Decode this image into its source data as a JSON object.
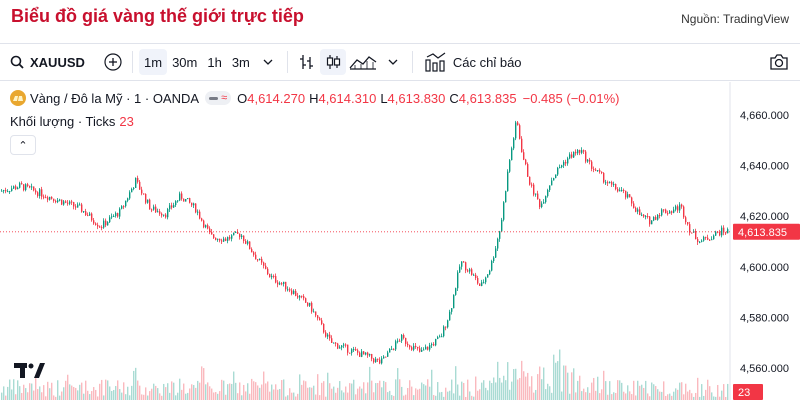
{
  "header": {
    "title": "Biểu đồ giá vàng thế giới trực tiếp",
    "source": "Nguồn: TradingView"
  },
  "toolbar": {
    "symbol": "XAUUSD",
    "intervals": [
      "1m",
      "30m",
      "1h",
      "3m"
    ],
    "active_interval": "1m",
    "indicators_label": "Các chỉ báo",
    "icons": [
      "search-icon",
      "add-symbol-icon",
      "chevron-down-icon",
      "bar-chart-icon",
      "candles-icon",
      "area-chart-icon",
      "chevron-down-icon",
      "indicators-icon",
      "camera-icon"
    ]
  },
  "legend": {
    "title": "Vàng / Đô la Mỹ · 1 · OANDA",
    "o_label": "O",
    "o": "4,614.270",
    "h_label": "H",
    "h": "4,614.310",
    "l_label": "L",
    "l": "4,613.830",
    "c_label": "C",
    "c": "4,613.835",
    "change": "−0.485 (−0.01%)",
    "wave": "≈"
  },
  "volume_legend": {
    "label": "Khối lượng · Ticks",
    "value": "23"
  },
  "chart_data": {
    "type": "candlestick",
    "symbol": "XAUUSD",
    "interval": "1m",
    "ylim": [
      4558,
      4663
    ],
    "y_ticks": [
      4560,
      4580,
      4600,
      4620,
      4640,
      4660
    ],
    "y_tick_labels": [
      "4,560.000",
      "4,580.000",
      "4,600.000",
      "4,620.000",
      "4,640.000",
      "4,660.000"
    ],
    "last_price": 4613.835,
    "last_price_label": "4,613.835",
    "last_volume": 23,
    "last_volume_label": "23",
    "price_path": [
      [
        0,
        4630
      ],
      [
        20,
        4632
      ],
      [
        40,
        4629
      ],
      [
        60,
        4626
      ],
      [
        80,
        4623
      ],
      [
        100,
        4616
      ],
      [
        120,
        4622
      ],
      [
        135,
        4634
      ],
      [
        150,
        4623
      ],
      [
        165,
        4621
      ],
      [
        180,
        4628
      ],
      [
        195,
        4623
      ],
      [
        210,
        4612
      ],
      [
        225,
        4611
      ],
      [
        240,
        4613
      ],
      [
        255,
        4604
      ],
      [
        270,
        4596
      ],
      [
        290,
        4591
      ],
      [
        310,
        4584
      ],
      [
        330,
        4570
      ],
      [
        350,
        4567
      ],
      [
        370,
        4564
      ],
      [
        380,
        4562
      ],
      [
        390,
        4567
      ],
      [
        400,
        4572
      ],
      [
        420,
        4566
      ],
      [
        440,
        4572
      ],
      [
        450,
        4583
      ],
      [
        460,
        4602
      ],
      [
        470,
        4598
      ],
      [
        480,
        4592
      ],
      [
        490,
        4600
      ],
      [
        500,
        4616
      ],
      [
        508,
        4640
      ],
      [
        516,
        4658
      ],
      [
        522,
        4644
      ],
      [
        530,
        4632
      ],
      [
        540,
        4624
      ],
      [
        550,
        4634
      ],
      [
        560,
        4640
      ],
      [
        570,
        4644
      ],
      [
        580,
        4646
      ],
      [
        590,
        4640
      ],
      [
        600,
        4636
      ],
      [
        610,
        4632
      ],
      [
        620,
        4630
      ],
      [
        630,
        4626
      ],
      [
        640,
        4620
      ],
      [
        650,
        4618
      ],
      [
        660,
        4622
      ],
      [
        670,
        4622
      ],
      [
        680,
        4624
      ],
      [
        690,
        4614
      ],
      [
        700,
        4610
      ],
      [
        710,
        4612
      ],
      [
        720,
        4614
      ],
      [
        728,
        4614
      ]
    ],
    "colors": {
      "up": "#089981",
      "down": "#f23645"
    }
  }
}
